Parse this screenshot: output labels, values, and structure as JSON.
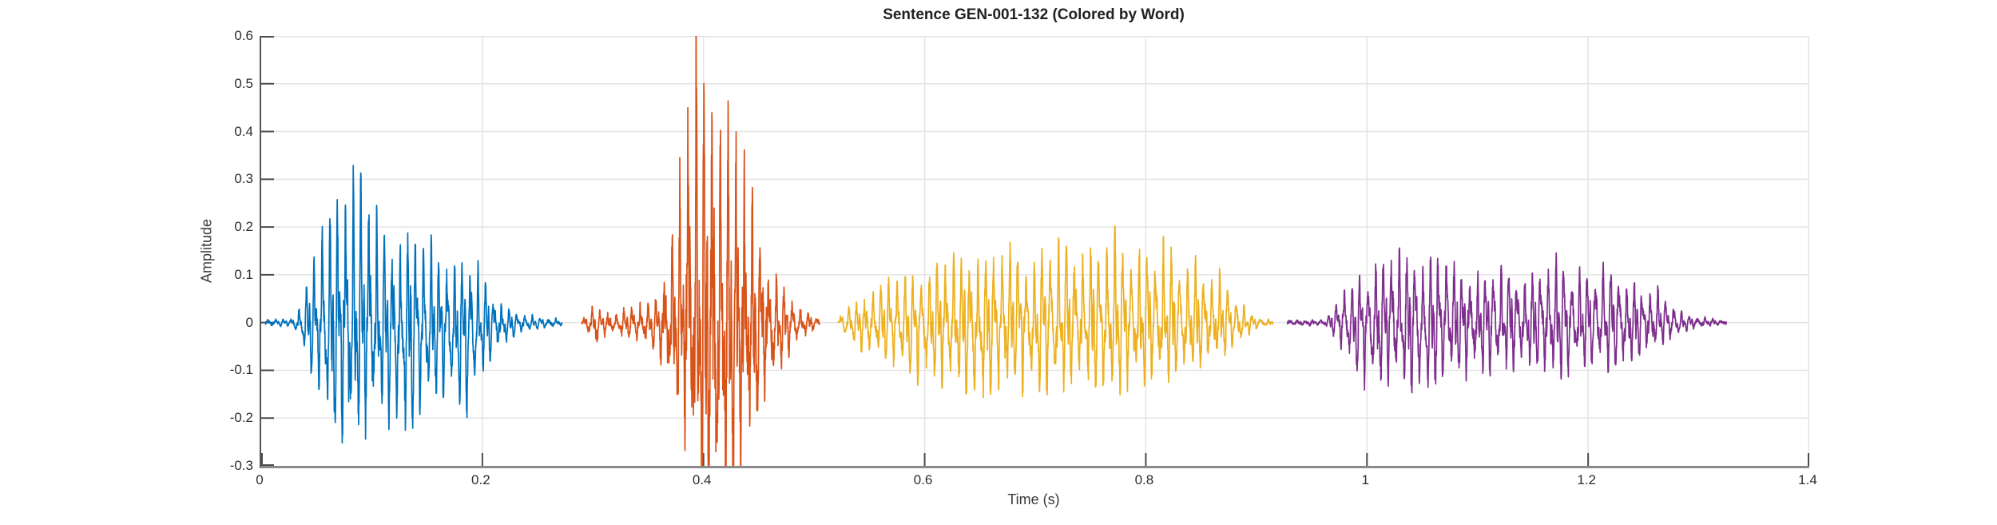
{
  "figure": {
    "background": "#ffffff"
  },
  "chart_data": {
    "type": "line",
    "subtype": "audio-waveform",
    "title": "Sentence GEN-001-132 (Colored by Word)",
    "xlabel": "Time (s)",
    "ylabel": "Amplitude",
    "xlim": [
      0,
      1.4
    ],
    "ylim": [
      -0.3,
      0.6
    ],
    "grid": true,
    "grid_color": "#e4e4e4",
    "axis_color": "#8a8a8a",
    "tick_color": "#4d4d4d",
    "text_color": "#2e2e2e",
    "xticks": {
      "values": [
        0,
        0.2,
        0.4,
        0.6,
        0.8,
        1,
        1.2,
        1.4
      ],
      "labels": [
        "0",
        "0.2",
        "0.4",
        "0.6",
        "0.8",
        "1",
        "1.2",
        "1.4"
      ]
    },
    "yticks": {
      "values": [
        -0.3,
        -0.2,
        -0.1,
        0,
        0.1,
        0.2,
        0.3,
        0.4,
        0.5,
        0.6
      ],
      "labels": [
        "-0.3",
        "-0.2",
        "-0.1",
        "0",
        "0.1",
        "0.2",
        "0.3",
        "0.4",
        "0.5",
        "0.6"
      ]
    },
    "words": [
      {
        "name": "word-1",
        "color": "#0072BD",
        "t_start": 0.004,
        "t_end": 0.272,
        "peak_amplitude": 0.305,
        "min_amplitude": -0.17,
        "render": {
          "freq": 142,
          "seed": 7,
          "noise": 0.18,
          "pshape": 5,
          "nshape": 1.7
        },
        "envelope": [
          [
            0.004,
            0.004,
            0.004
          ],
          [
            0.028,
            0.006,
            0.006
          ],
          [
            0.033,
            0.02,
            0.02
          ],
          [
            0.038,
            0.05,
            0.05
          ],
          [
            0.044,
            0.08,
            0.08
          ],
          [
            0.05,
            0.13,
            0.1
          ],
          [
            0.058,
            0.19,
            0.13
          ],
          [
            0.066,
            0.24,
            0.15
          ],
          [
            0.075,
            0.29,
            0.16
          ],
          [
            0.082,
            0.305,
            0.17
          ],
          [
            0.09,
            0.26,
            0.17
          ],
          [
            0.098,
            0.21,
            0.16
          ],
          [
            0.105,
            0.19,
            0.15
          ],
          [
            0.115,
            0.16,
            0.14
          ],
          [
            0.125,
            0.155,
            0.16
          ],
          [
            0.135,
            0.16,
            0.17
          ],
          [
            0.145,
            0.14,
            0.15
          ],
          [
            0.155,
            0.13,
            0.13
          ],
          [
            0.165,
            0.125,
            0.12
          ],
          [
            0.175,
            0.11,
            0.12
          ],
          [
            0.185,
            0.1,
            0.14
          ],
          [
            0.195,
            0.085,
            0.1
          ],
          [
            0.205,
            0.06,
            0.07
          ],
          [
            0.215,
            0.04,
            0.045
          ],
          [
            0.225,
            0.025,
            0.03
          ],
          [
            0.235,
            0.014,
            0.014
          ],
          [
            0.25,
            0.01,
            0.01
          ],
          [
            0.262,
            0.008,
            0.008
          ],
          [
            0.272,
            0.004,
            0.004
          ]
        ]
      },
      {
        "name": "word-2",
        "color": "#D95319",
        "t_start": 0.29,
        "t_end": 0.505,
        "peak_amplitude": 0.54,
        "min_amplitude": -0.25,
        "render": {
          "freq": 138,
          "seed": 21,
          "noise": 0.35,
          "pshape": 6,
          "nshape": 1.6
        },
        "envelope": [
          [
            0.29,
            0.008,
            0.008
          ],
          [
            0.296,
            0.015,
            0.015
          ],
          [
            0.299,
            0.025,
            0.02
          ],
          [
            0.302,
            0.05,
            0.05
          ],
          [
            0.305,
            0.022,
            0.02
          ],
          [
            0.315,
            0.018,
            0.018
          ],
          [
            0.325,
            0.02,
            0.02
          ],
          [
            0.335,
            0.025,
            0.025
          ],
          [
            0.345,
            0.032,
            0.028
          ],
          [
            0.352,
            0.035,
            0.03
          ],
          [
            0.358,
            0.05,
            0.04
          ],
          [
            0.365,
            0.09,
            0.07
          ],
          [
            0.372,
            0.16,
            0.1
          ],
          [
            0.378,
            0.24,
            0.13
          ],
          [
            0.384,
            0.33,
            0.16
          ],
          [
            0.39,
            0.45,
            0.19
          ],
          [
            0.395,
            0.54,
            0.21
          ],
          [
            0.4,
            0.5,
            0.25
          ],
          [
            0.406,
            0.46,
            0.25
          ],
          [
            0.412,
            0.42,
            0.24
          ],
          [
            0.418,
            0.39,
            0.235
          ],
          [
            0.424,
            0.36,
            0.23
          ],
          [
            0.43,
            0.31,
            0.22
          ],
          [
            0.436,
            0.27,
            0.2
          ],
          [
            0.442,
            0.22,
            0.17
          ],
          [
            0.448,
            0.18,
            0.15
          ],
          [
            0.455,
            0.14,
            0.12
          ],
          [
            0.462,
            0.1,
            0.09
          ],
          [
            0.47,
            0.07,
            0.06
          ],
          [
            0.478,
            0.045,
            0.04
          ],
          [
            0.486,
            0.025,
            0.025
          ],
          [
            0.495,
            0.015,
            0.015
          ],
          [
            0.505,
            0.006,
            0.006
          ]
        ]
      },
      {
        "name": "word-3",
        "color": "#EDB120",
        "t_start": 0.522,
        "t_end": 0.915,
        "peak_amplitude": 0.14,
        "min_amplitude": -0.12,
        "render": {
          "freq": 137,
          "seed": 40,
          "noise": 0.22,
          "pshape": 3.5,
          "nshape": 2.2
        },
        "envelope": [
          [
            0.522,
            0.006,
            0.006
          ],
          [
            0.53,
            0.025,
            0.025
          ],
          [
            0.54,
            0.04,
            0.04
          ],
          [
            0.555,
            0.055,
            0.055
          ],
          [
            0.57,
            0.07,
            0.065
          ],
          [
            0.59,
            0.085,
            0.08
          ],
          [
            0.61,
            0.095,
            0.1
          ],
          [
            0.63,
            0.105,
            0.11
          ],
          [
            0.65,
            0.11,
            0.12
          ],
          [
            0.67,
            0.115,
            0.11
          ],
          [
            0.69,
            0.12,
            0.105
          ],
          [
            0.71,
            0.125,
            0.1
          ],
          [
            0.73,
            0.13,
            0.1
          ],
          [
            0.75,
            0.135,
            0.1
          ],
          [
            0.77,
            0.13,
            0.1
          ],
          [
            0.79,
            0.135,
            0.095
          ],
          [
            0.805,
            0.13,
            0.09
          ],
          [
            0.82,
            0.115,
            0.08
          ],
          [
            0.83,
            0.1,
            0.07
          ],
          [
            0.84,
            0.11,
            0.075
          ],
          [
            0.85,
            0.105,
            0.07
          ],
          [
            0.862,
            0.085,
            0.06
          ],
          [
            0.875,
            0.06,
            0.045
          ],
          [
            0.885,
            0.035,
            0.03
          ],
          [
            0.895,
            0.015,
            0.012
          ],
          [
            0.905,
            0.008,
            0.006
          ],
          [
            0.915,
            0.004,
            0.004
          ]
        ]
      },
      {
        "name": "word-4",
        "color": "#7E2F8E",
        "t_start": 0.928,
        "t_end": 1.325,
        "peak_amplitude": 0.115,
        "min_amplitude": -0.115,
        "render": {
          "freq": 141,
          "seed": 63,
          "noise": 0.25,
          "pshape": 2.6,
          "nshape": 2.2
        },
        "envelope": [
          [
            0.928,
            0.003,
            0.003
          ],
          [
            0.962,
            0.004,
            0.004
          ],
          [
            0.968,
            0.015,
            0.015
          ],
          [
            0.975,
            0.04,
            0.04
          ],
          [
            0.985,
            0.065,
            0.06
          ],
          [
            0.995,
            0.085,
            0.08
          ],
          [
            1.005,
            0.095,
            0.09
          ],
          [
            1.02,
            0.105,
            0.1
          ],
          [
            1.04,
            0.115,
            0.105
          ],
          [
            1.055,
            0.11,
            0.1
          ],
          [
            1.07,
            0.1,
            0.095
          ],
          [
            1.085,
            0.09,
            0.085
          ],
          [
            1.1,
            0.085,
            0.075
          ],
          [
            1.12,
            0.08,
            0.07
          ],
          [
            1.14,
            0.082,
            0.072
          ],
          [
            1.16,
            0.086,
            0.072
          ],
          [
            1.175,
            0.092,
            0.075
          ],
          [
            1.19,
            0.088,
            0.072
          ],
          [
            1.205,
            0.085,
            0.07
          ],
          [
            1.22,
            0.08,
            0.066
          ],
          [
            1.235,
            0.072,
            0.06
          ],
          [
            1.25,
            0.06,
            0.05
          ],
          [
            1.265,
            0.045,
            0.038
          ],
          [
            1.278,
            0.028,
            0.024
          ],
          [
            1.288,
            0.015,
            0.013
          ],
          [
            1.3,
            0.008,
            0.007
          ],
          [
            1.312,
            0.005,
            0.004
          ],
          [
            1.325,
            0.002,
            0.002
          ]
        ]
      }
    ]
  }
}
